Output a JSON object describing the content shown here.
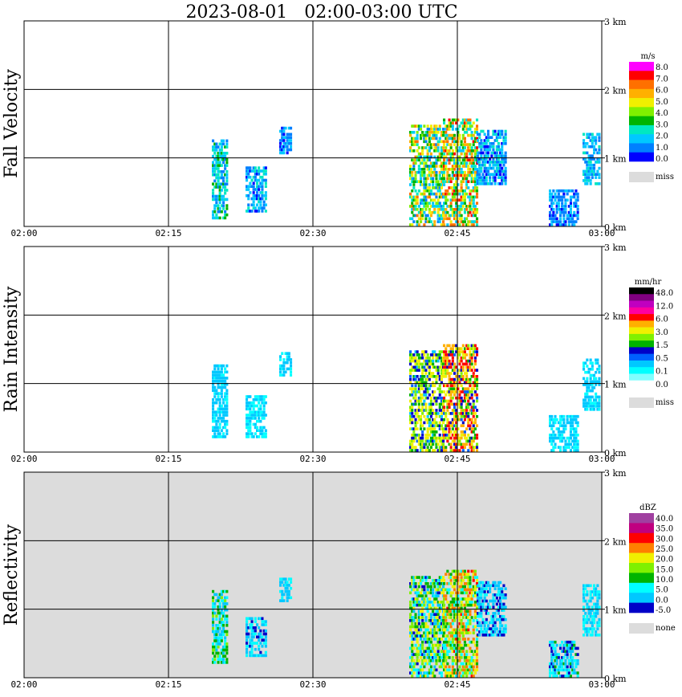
{
  "title": "2023-08-01   02:00-03:00 UTC",
  "chart_data": [
    {
      "type": "heatmap",
      "panel_label": "Fall Velocity",
      "colorbar": {
        "unit": "m/s",
        "colors": [
          "#0000ff",
          "#0080ff",
          "#00c8ff",
          "#00e8c0",
          "#00b400",
          "#80f000",
          "#f0f000",
          "#ffb000",
          "#ff7000",
          "#ff0000",
          "#ff00ff"
        ],
        "tick_labels": [
          "8.0",
          "7.0",
          "6.0",
          "5.0",
          "4.0",
          "3.0",
          "2.0",
          "1.0",
          "0.0"
        ],
        "missing_label": "miss"
      },
      "x_tick_labels": [
        "02:00",
        "02:15",
        "02:30",
        "02:45",
        "03:00"
      ],
      "y_tick_labels": [
        "3 km",
        "2 km",
        "1 km",
        "0 km"
      ],
      "xlim_minutes": [
        0,
        60
      ],
      "ylim_km": [
        0,
        3.0
      ],
      "background": "#ffffff",
      "echo_regions": [
        {
          "t": [
            19.5,
            21.0
          ],
          "h": [
            0.1,
            1.25
          ],
          "values": [
            1.0,
            3.5
          ]
        },
        {
          "t": [
            23.0,
            25.0
          ],
          "h": [
            0.2,
            0.85
          ],
          "values": [
            0.5,
            2.5
          ]
        },
        {
          "t": [
            26.5,
            27.7
          ],
          "h": [
            1.05,
            1.45
          ],
          "values": [
            0.5,
            2.0
          ]
        },
        {
          "t": [
            40.0,
            43.5
          ],
          "h": [
            0.0,
            1.45
          ],
          "values": [
            1.0,
            6.0
          ]
        },
        {
          "t": [
            43.5,
            47.0
          ],
          "h": [
            0.0,
            1.55
          ],
          "values": [
            1.5,
            7.0
          ]
        },
        {
          "t": [
            47.0,
            50.0
          ],
          "h": [
            0.6,
            1.4
          ],
          "values": [
            0.5,
            2.5
          ]
        },
        {
          "t": [
            54.5,
            57.5
          ],
          "h": [
            0.0,
            0.5
          ],
          "values": [
            0.5,
            2.0
          ]
        },
        {
          "t": [
            58.0,
            59.8
          ],
          "h": [
            0.6,
            1.35
          ],
          "values": [
            1.0,
            2.5
          ]
        }
      ]
    },
    {
      "type": "heatmap",
      "panel_label": "Rain Intensity",
      "colorbar": {
        "unit": "mm/hr",
        "colors": [
          "#ffffff",
          "#80ffff",
          "#00ffff",
          "#00c8ff",
          "#0060ff",
          "#0000c8",
          "#00b400",
          "#80f000",
          "#f0f000",
          "#ffb000",
          "#ff0000",
          "#ff00a0",
          "#c000c0",
          "#800080",
          "#000000"
        ],
        "tick_labels": [
          "48.0",
          "12.0",
          "6.0",
          "3.0",
          "1.5",
          "0.5",
          "0.1",
          "0.0"
        ],
        "missing_label": "miss"
      },
      "x_tick_labels": [
        "02:00",
        "02:15",
        "02:30",
        "02:45",
        "03:00"
      ],
      "y_tick_labels": [
        "3 km",
        "2 km",
        "1 km",
        "0 km"
      ],
      "xlim_minutes": [
        0,
        60
      ],
      "ylim_km": [
        0,
        3.0
      ],
      "background": "#ffffff",
      "echo_regions": [
        {
          "t": [
            19.5,
            21.0
          ],
          "h": [
            0.2,
            1.25
          ],
          "values": [
            0.05,
            0.3
          ]
        },
        {
          "t": [
            23.0,
            25.0
          ],
          "h": [
            0.2,
            0.8
          ],
          "values": [
            0.05,
            0.15
          ]
        },
        {
          "t": [
            26.5,
            27.7
          ],
          "h": [
            1.1,
            1.45
          ],
          "values": [
            0.05,
            0.2
          ]
        },
        {
          "t": [
            40.0,
            43.5
          ],
          "h": [
            0.0,
            1.45
          ],
          "values": [
            0.1,
            3.0
          ]
        },
        {
          "t": [
            43.5,
            47.0
          ],
          "h": [
            0.0,
            1.55
          ],
          "values": [
            0.3,
            6.0
          ]
        },
        {
          "t": [
            54.5,
            57.5
          ],
          "h": [
            0.0,
            0.5
          ],
          "values": [
            0.05,
            0.2
          ]
        },
        {
          "t": [
            58.0,
            59.8
          ],
          "h": [
            0.6,
            1.35
          ],
          "values": [
            0.05,
            0.2
          ]
        }
      ]
    },
    {
      "type": "heatmap",
      "panel_label": "Reflectivity",
      "colorbar": {
        "unit": "dBZ",
        "colors": [
          "#0000c8",
          "#00c8ff",
          "#00ffff",
          "#00b400",
          "#80f000",
          "#f0f000",
          "#ff8000",
          "#ff0000",
          "#c00080",
          "#a040a0"
        ],
        "tick_labels": [
          "40.0",
          "35.0",
          "30.0",
          "25.0",
          "20.0",
          "15.0",
          "10.0",
          "5.0",
          "0.0",
          "-5.0"
        ],
        "missing_label": "none"
      },
      "x_tick_labels": [
        "02:00",
        "02:15",
        "02:30",
        "02:45",
        "03:00"
      ],
      "y_tick_labels": [
        "3 km",
        "2 km",
        "1 km",
        "0 km"
      ],
      "xlim_minutes": [
        0,
        60
      ],
      "ylim_km": [
        0,
        3.0
      ],
      "background": "#dcdcdc",
      "echo_regions": [
        {
          "t": [
            19.5,
            21.0
          ],
          "h": [
            0.2,
            1.25
          ],
          "values": [
            0.0,
            14.0
          ]
        },
        {
          "t": [
            23.0,
            25.0
          ],
          "h": [
            0.3,
            0.85
          ],
          "values": [
            -3.0,
            8.0
          ]
        },
        {
          "t": [
            26.5,
            27.7
          ],
          "h": [
            1.1,
            1.45
          ],
          "values": [
            0.0,
            6.0
          ]
        },
        {
          "t": [
            40.0,
            43.5
          ],
          "h": [
            0.0,
            1.45
          ],
          "values": [
            -3.0,
            22.0
          ]
        },
        {
          "t": [
            43.5,
            47.0
          ],
          "h": [
            0.0,
            1.55
          ],
          "values": [
            5.0,
            27.0
          ]
        },
        {
          "t": [
            47.0,
            50.0
          ],
          "h": [
            0.6,
            1.4
          ],
          "values": [
            -3.0,
            6.0
          ]
        },
        {
          "t": [
            54.5,
            57.5
          ],
          "h": [
            0.0,
            0.5
          ],
          "values": [
            -3.0,
            10.0
          ]
        },
        {
          "t": [
            58.0,
            59.8
          ],
          "h": [
            0.6,
            1.35
          ],
          "values": [
            0.0,
            8.0
          ]
        }
      ]
    }
  ]
}
